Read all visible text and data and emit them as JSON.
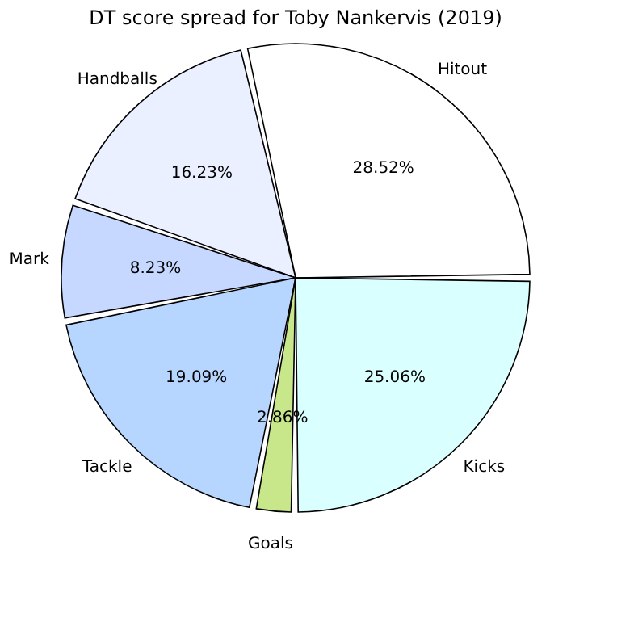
{
  "chart_data": {
    "type": "pie",
    "title": "DT score spread for Toby Nankervis (2019)",
    "categories": [
      "Hitout",
      "Handballs",
      "Mark",
      "Tackle",
      "Goals",
      "Kicks"
    ],
    "values": [
      28.52,
      16.23,
      8.23,
      19.09,
      2.86,
      25.06
    ],
    "colors": [
      "#ffffff",
      "#eaf0ff",
      "#c6d8ff",
      "#b6d6ff",
      "#c8e68a",
      "#d9ffff"
    ],
    "value_labels": [
      "28.52%",
      "16.23%",
      "8.23%",
      "19.09%",
      "2.86%",
      "25.06%"
    ],
    "legend": false
  }
}
